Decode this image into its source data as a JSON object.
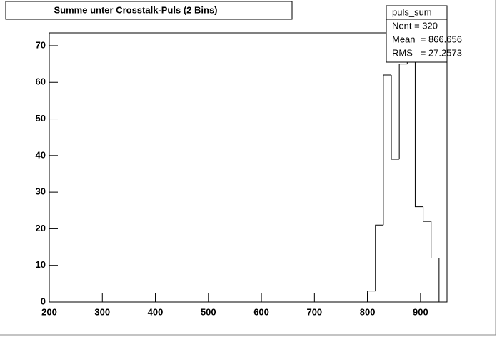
{
  "chart_data": {
    "type": "histogram",
    "title": "Summe unter Crosstalk-Puls (2 Bins)",
    "bins": [
      200,
      215,
      230,
      245,
      260,
      275,
      290,
      305,
      320,
      335,
      350,
      365,
      380,
      395,
      410,
      425,
      440,
      455,
      470,
      485,
      500,
      515,
      530,
      545,
      560,
      575,
      590,
      605,
      620,
      635,
      650,
      665,
      680,
      695,
      710,
      725,
      740,
      755,
      770,
      785,
      800,
      815,
      830,
      845,
      860,
      875,
      890,
      905,
      920,
      935,
      950
    ],
    "values": [
      0,
      0,
      0,
      0,
      0,
      0,
      0,
      0,
      0,
      0,
      0,
      0,
      0,
      0,
      0,
      0,
      0,
      0,
      0,
      0,
      0,
      0,
      0,
      0,
      0,
      0,
      0,
      0,
      0,
      0,
      0,
      0,
      0,
      0,
      0,
      0,
      0,
      0,
      0,
      0,
      3,
      21,
      62,
      39,
      65,
      70,
      26,
      22,
      12,
      0
    ],
    "color": "#000000",
    "xlim": [
      200,
      950
    ],
    "xticks": [
      200,
      300,
      400,
      500,
      600,
      700,
      800,
      900
    ],
    "ylim": [
      0,
      73.5
    ],
    "yticks": [
      0,
      10,
      20,
      30,
      40,
      50,
      60,
      70
    ],
    "stats": {
      "name": "puls_sum",
      "lines": [
        "Nent = 320",
        "Mean  = 866.656",
        "RMS   = 27.2573"
      ]
    }
  }
}
